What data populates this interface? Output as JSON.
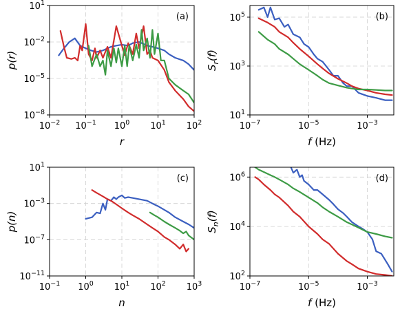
{
  "chart_data": [
    {
      "id": "a",
      "type": "line",
      "panel_label": "(a)",
      "xscale": "log",
      "yscale": "log",
      "xlim": [
        0.01,
        100
      ],
      "ylim": [
        1e-08,
        10
      ],
      "xticks": [
        0.01,
        0.1,
        1,
        10,
        100
      ],
      "yticks": [
        1e-08,
        1e-05,
        0.01,
        10
      ],
      "xtick_labels": [
        {
          "b": "10",
          "e": "−2"
        },
        {
          "b": "10",
          "e": "−1"
        },
        {
          "b": "10",
          "e": "0"
        },
        {
          "b": "10",
          "e": "1"
        },
        {
          "b": "10",
          "e": "2"
        }
      ],
      "ytick_labels": [
        {
          "b": "10",
          "e": "−8"
        },
        {
          "b": "10",
          "e": "−5"
        },
        {
          "b": "10",
          "e": "−2"
        },
        {
          "b": "10",
          "e": "1"
        }
      ],
      "xlabel": "r",
      "ylabel": {
        "main": "p(",
        "var": "r",
        "end": ")"
      },
      "grid": true,
      "series": [
        {
          "color": "#3b5fc0",
          "x": [
            0.018,
            0.025,
            0.035,
            0.05,
            0.07,
            0.1,
            0.14,
            0.2,
            0.3,
            0.5,
            0.7,
            1,
            1.5,
            2,
            3,
            5,
            7,
            10,
            15,
            20,
            30,
            50,
            70,
            100
          ],
          "y": [
            0.0008,
            0.003,
            0.01,
            0.02,
            0.005,
            0.003,
            0.002,
            0.0015,
            0.002,
            0.004,
            0.005,
            0.006,
            0.005,
            0.008,
            0.01,
            0.005,
            0.004,
            0.003,
            0.002,
            0.001,
            0.0005,
            0.0003,
            0.00015,
            5e-05
          ]
        },
        {
          "color": "#d12c2c",
          "x": [
            0.02,
            0.025,
            0.03,
            0.04,
            0.05,
            0.06,
            0.07,
            0.08,
            0.1,
            0.12,
            0.15,
            0.18,
            0.2,
            0.25,
            0.3,
            0.4,
            0.5,
            0.7,
            1,
            1.2,
            1.5,
            2,
            2.5,
            3,
            4,
            5,
            6,
            7,
            10,
            15,
            20,
            30,
            50,
            70,
            100
          ],
          "y": [
            0.08,
            0.004,
            0.0005,
            0.0004,
            0.0005,
            0.0003,
            0.005,
            0.002,
            0.3,
            0.001,
            0.0003,
            0.003,
            0.0005,
            0.002,
            0.0005,
            0.004,
            0.0005,
            0.2,
            0.005,
            0.0008,
            0.008,
            0.001,
            0.05,
            0.003,
            0.2,
            0.001,
            0.002,
            0.0005,
            0.0003,
            5e-05,
            5e-06,
            1e-06,
            2e-07,
            5e-08,
            2e-08
          ]
        },
        {
          "color": "#3d9b45",
          "x": [
            0.12,
            0.15,
            0.2,
            0.25,
            0.3,
            0.35,
            0.4,
            0.5,
            0.6,
            0.7,
            0.8,
            1,
            1.2,
            1.4,
            1.6,
            2,
            2.5,
            3,
            3.5,
            4,
            5,
            6,
            7,
            8,
            10,
            12,
            15,
            20,
            30,
            50,
            70,
            100
          ],
          "y": [
            0.005,
            0.0001,
            0.001,
            0.0001,
            0.0003,
            2e-05,
            0.002,
            0.0001,
            0.003,
            0.0002,
            0.003,
            0.0001,
            0.005,
            0.0001,
            0.005,
            0.0003,
            0.006,
            0.0005,
            0.1,
            0.002,
            0.02,
            0.0005,
            0.1,
            0.001,
            0.05,
            0.0003,
            0.0003,
            1e-05,
            3e-06,
            1e-06,
            5e-07,
            1e-07
          ]
        }
      ]
    },
    {
      "id": "b",
      "type": "line",
      "panel_label": "(b)",
      "xscale": "log",
      "yscale": "log",
      "xlim": [
        1e-07,
        0.008
      ],
      "ylim": [
        10,
        300000
      ],
      "xticks": [
        1e-07,
        1e-05,
        0.001
      ],
      "yticks": [
        10,
        1000,
        100000
      ],
      "xtick_labels": [
        {
          "b": "10",
          "e": "−7"
        },
        {
          "b": "10",
          "e": "−5"
        },
        {
          "b": "10",
          "e": "−3"
        }
      ],
      "ytick_labels": [
        {
          "b": "10",
          "e": "1"
        },
        {
          "b": "10",
          "e": "3"
        },
        {
          "b": "10",
          "e": "5"
        }
      ],
      "xlabel": {
        "main": "f",
        "unit": " (Hz)"
      },
      "ylabel": {
        "main": "S",
        "sub": "r",
        "var": "(f)"
      },
      "grid": true,
      "series": [
        {
          "color": "#3b5fc0",
          "x": [
            2e-07,
            3e-07,
            4e-07,
            5e-07,
            7e-07,
            1e-06,
            1.5e-06,
            2e-06,
            3e-06,
            5e-06,
            7e-06,
            1e-05,
            1.5e-05,
            2e-05,
            3e-05,
            5e-05,
            7e-05,
            0.0001,
            0.00015,
            0.0002,
            0.0003,
            0.0005,
            0.001,
            0.002,
            0.004,
            0.007
          ],
          "y": [
            200000,
            250000,
            100000,
            250000,
            80000,
            90000,
            40000,
            50000,
            20000,
            15000,
            8000,
            6000,
            3000,
            2000,
            1500,
            700,
            400,
            400,
            200,
            150,
            150,
            80,
            60,
            50,
            40,
            40
          ]
        },
        {
          "color": "#d12c2c",
          "x": [
            2e-07,
            4e-07,
            7e-07,
            1e-06,
            2e-06,
            3e-06,
            5e-06,
            1e-05,
            2e-05,
            3e-05,
            5e-05,
            0.0001,
            0.0002,
            0.0003,
            0.0005,
            0.001,
            0.002,
            0.004,
            0.007
          ],
          "y": [
            90000,
            60000,
            40000,
            25000,
            15000,
            9000,
            5000,
            2500,
            1200,
            800,
            500,
            300,
            200,
            150,
            120,
            100,
            80,
            70,
            65
          ]
        },
        {
          "color": "#3d9b45",
          "x": [
            2e-07,
            4e-07,
            7e-07,
            1e-06,
            2e-06,
            3e-06,
            5e-06,
            1e-05,
            2e-05,
            3e-05,
            5e-05,
            0.0001,
            0.0002,
            0.0003,
            0.0005,
            0.001,
            0.002,
            0.004,
            0.007
          ],
          "y": [
            25000,
            12000,
            8000,
            5000,
            3000,
            2000,
            1200,
            700,
            400,
            280,
            200,
            160,
            130,
            120,
            110,
            110,
            105,
            100,
            100
          ]
        }
      ]
    },
    {
      "id": "c",
      "type": "line",
      "panel_label": "(c)",
      "xscale": "log",
      "yscale": "log",
      "xlim": [
        0.1,
        1000
      ],
      "ylim": [
        1e-11,
        10
      ],
      "xticks": [
        0.1,
        1,
        10,
        100,
        1000
      ],
      "yticks": [
        1e-11,
        1e-07,
        0.001,
        10
      ],
      "xtick_labels": [
        {
          "b": "10",
          "e": "−1"
        },
        {
          "b": "10",
          "e": "0"
        },
        {
          "b": "10",
          "e": "1"
        },
        {
          "b": "10",
          "e": "2"
        },
        {
          "b": "10",
          "e": "3"
        }
      ],
      "ytick_labels": [
        {
          "b": "10",
          "e": "−11"
        },
        {
          "b": "10",
          "e": "−7"
        },
        {
          "b": "10",
          "e": "−3"
        },
        {
          "b": "10",
          "e": "1"
        }
      ],
      "xlabel": "n",
      "ylabel": {
        "main": "p(",
        "var": "n",
        "end": ")"
      },
      "grid": true,
      "series": [
        {
          "color": "#3b5fc0",
          "x": [
            1,
            1.5,
            2,
            2.5,
            3,
            3.5,
            4,
            5,
            6,
            7,
            8,
            10,
            12,
            15,
            20,
            30,
            50,
            70,
            100,
            150,
            200,
            300,
            500,
            700,
            1000
          ],
          "y": [
            2e-05,
            3e-05,
            0.0001,
            8e-05,
            0.001,
            0.0002,
            0.003,
            0.002,
            0.005,
            0.003,
            0.005,
            0.008,
            0.004,
            0.005,
            0.004,
            0.003,
            0.002,
            0.001,
            0.0005,
            0.0002,
            0.0001,
            3e-05,
            1e-05,
            5e-06,
            2e-06
          ]
        },
        {
          "color": "#d12c2c",
          "x": [
            1.5,
            2,
            3,
            4,
            5,
            7,
            10,
            15,
            20,
            30,
            50,
            70,
            100,
            150,
            200,
            300,
            400,
            500,
            600,
            700
          ],
          "y": [
            0.03,
            0.015,
            0.006,
            0.003,
            0.002,
            0.0008,
            0.0003,
            0.0001,
            5e-05,
            2e-05,
            5e-06,
            2e-06,
            8e-07,
            2e-07,
            1e-07,
            3e-08,
            1e-08,
            3e-08,
            5e-09,
            1e-08
          ]
        },
        {
          "color": "#3d9b45",
          "x": [
            60,
            80,
            100,
            150,
            200,
            300,
            400,
            500,
            600,
            700,
            800,
            1000
          ],
          "y": [
            0.0001,
            5e-05,
            3e-05,
            1e-05,
            5e-06,
            2e-06,
            1e-06,
            5e-07,
            8e-07,
            3e-07,
            2e-07,
            1e-07
          ]
        }
      ]
    },
    {
      "id": "d",
      "type": "line",
      "panel_label": "(d)",
      "xscale": "log",
      "yscale": "log",
      "xlim": [
        1e-07,
        0.008
      ],
      "ylim": [
        100,
        2500000
      ],
      "xticks": [
        1e-07,
        1e-05,
        0.001
      ],
      "yticks": [
        100,
        10000,
        1000000
      ],
      "xtick_labels": [
        {
          "b": "10",
          "e": "−7"
        },
        {
          "b": "10",
          "e": "−5"
        },
        {
          "b": "10",
          "e": "−3"
        }
      ],
      "ytick_labels": [
        {
          "b": "10",
          "e": "2"
        },
        {
          "b": "10",
          "e": "4"
        },
        {
          "b": "10",
          "e": "6"
        }
      ],
      "xlabel": {
        "main": "f",
        "unit": " (Hz)"
      },
      "ylabel": {
        "main": "S",
        "sub": "n",
        "var": "(f)"
      },
      "grid": true,
      "series": [
        {
          "color": "#3b5fc0",
          "x": [
            2.5e-06,
            3e-06,
            4e-06,
            5e-06,
            6e-06,
            7e-06,
            1e-05,
            1.5e-05,
            2e-05,
            3e-05,
            5e-05,
            7e-05,
            0.0001,
            0.00015,
            0.0002,
            0.0003,
            0.0005,
            0.0007,
            0.001,
            0.0015,
            0.002,
            0.003,
            0.005,
            0.007
          ],
          "y": [
            2500000,
            1500000,
            2000000,
            1000000,
            1200000,
            700000,
            500000,
            300000,
            300000,
            200000,
            120000,
            80000,
            50000,
            35000,
            25000,
            15000,
            10000,
            8000,
            6000,
            3000,
            1000,
            800,
            300,
            150
          ]
        },
        {
          "color": "#d12c2c",
          "x": [
            1.5e-07,
            2e-07,
            3e-07,
            5e-07,
            7e-07,
            1e-06,
            2e-06,
            3e-06,
            5e-06,
            1e-05,
            2e-05,
            3e-05,
            5e-05,
            0.0001,
            0.0002,
            0.0003,
            0.0005,
            0.001,
            0.002,
            0.004,
            0.007
          ],
          "y": [
            1000000,
            800000,
            500000,
            300000,
            200000,
            150000,
            70000,
            40000,
            25000,
            10000,
            5000,
            3000,
            2000,
            800,
            400,
            300,
            200,
            150,
            120,
            110,
            100
          ]
        },
        {
          "color": "#3d9b45",
          "x": [
            1.5e-07,
            2e-07,
            3e-07,
            5e-07,
            7e-07,
            1e-06,
            2e-06,
            3e-06,
            5e-06,
            1e-05,
            2e-05,
            3e-05,
            5e-05,
            0.0001,
            0.0002,
            0.0003,
            0.0005,
            0.001,
            0.002,
            0.004,
            0.007
          ],
          "y": [
            2500000,
            2000000,
            1600000,
            1200000,
            1000000,
            800000,
            500000,
            350000,
            250000,
            150000,
            90000,
            60000,
            40000,
            25000,
            15000,
            12000,
            9000,
            6000,
            5000,
            4000,
            3500
          ]
        }
      ]
    }
  ]
}
